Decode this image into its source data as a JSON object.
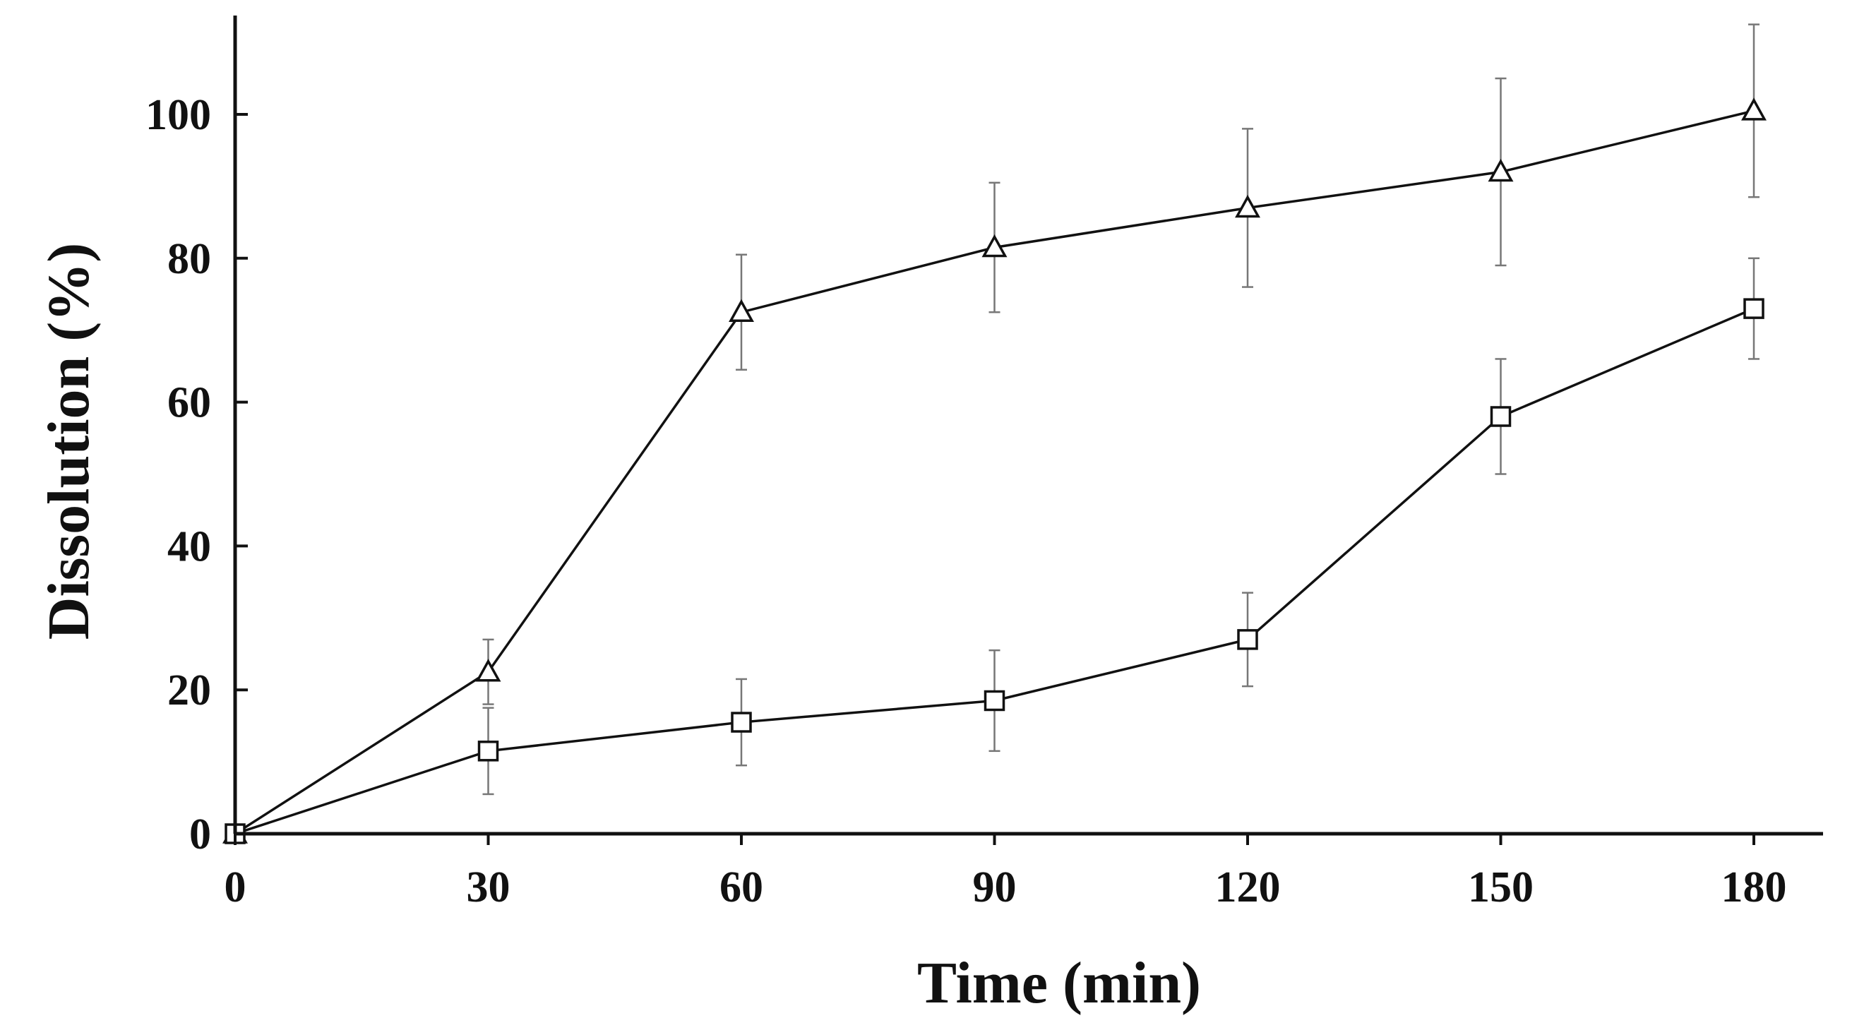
{
  "chart_data": {
    "type": "line",
    "title": "",
    "xlabel": "Time (min)",
    "ylabel": "Dissolution (%)",
    "x": [
      0,
      30,
      60,
      90,
      120,
      150,
      180
    ],
    "x_ticks": [
      "0",
      "30",
      "60",
      "90",
      "120",
      "150",
      "180"
    ],
    "y_ticks": [
      "0",
      "20",
      "40",
      "60",
      "80",
      "100"
    ],
    "xlim": [
      0,
      187
    ],
    "ylim": [
      0,
      113
    ],
    "grid": false,
    "legend": "none",
    "series": [
      {
        "marker": "triangle",
        "values": [
          0,
          22.5,
          72.5,
          81.5,
          87,
          92,
          100.5
        ],
        "error": [
          0,
          4.5,
          8,
          9,
          11,
          13,
          12
        ]
      },
      {
        "marker": "square",
        "values": [
          0,
          11.5,
          15.5,
          18.5,
          27,
          58,
          73
        ],
        "error": [
          0,
          6,
          6,
          7,
          6.5,
          8,
          7
        ]
      }
    ]
  }
}
